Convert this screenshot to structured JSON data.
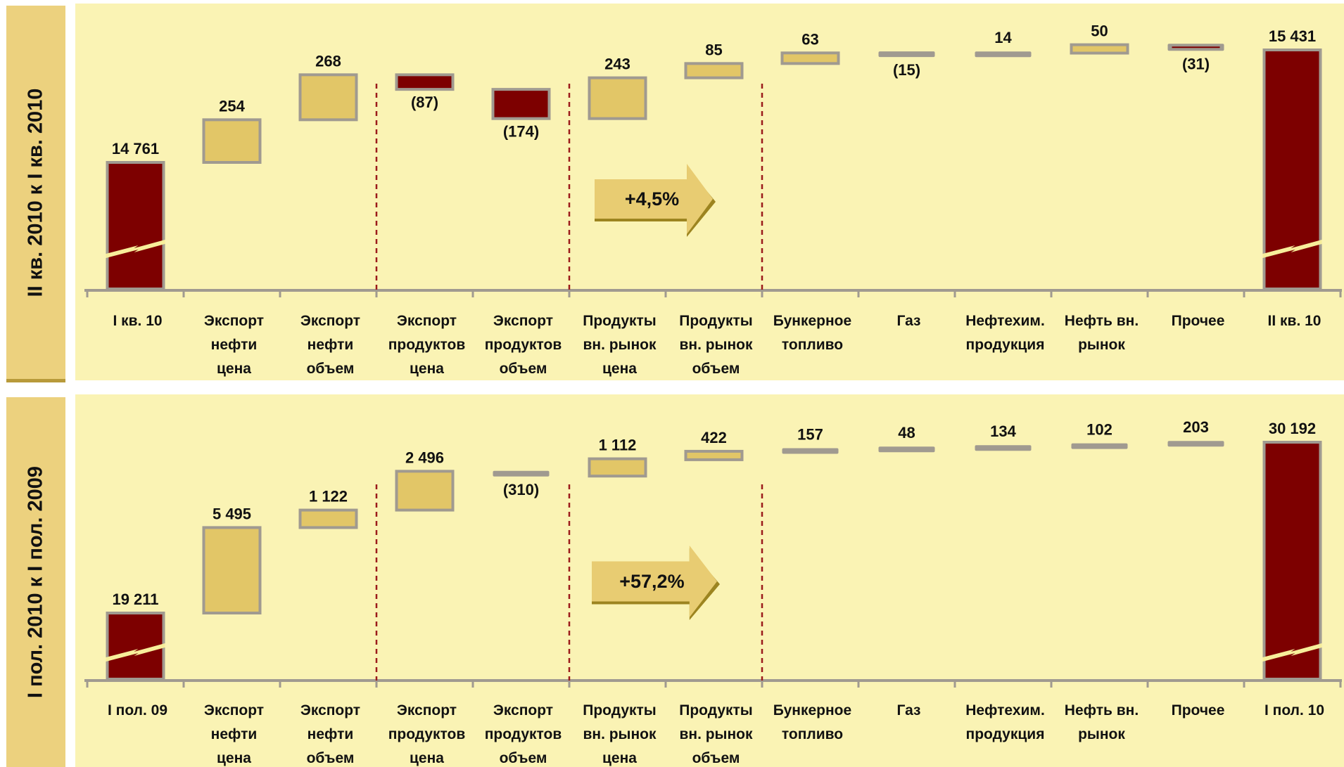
{
  "colors": {
    "up": "#e2c667",
    "down": "#7d0000",
    "total": "#7d0000",
    "border": "#a09a90",
    "neutral": "#a09a90",
    "axis": "#a09a90",
    "divider": "#9b1b1b",
    "panel_bg": "#faf3b4",
    "side_bg": "#ecd17e",
    "arrow": "#e8cc72"
  },
  "charts": [
    {
      "side_label": "II кв. 2010 к I кв. 2010",
      "arrow_label": "+4,5%"
    },
    {
      "side_label": "I пол. 2010 к I пол. 2009",
      "arrow_label": "+57,2%"
    }
  ],
  "chart_data": [
    {
      "type": "bar",
      "subtype": "waterfall",
      "categories": [
        [
          "I кв. 10"
        ],
        [
          "Экспорт",
          "нефти",
          "цена"
        ],
        [
          "Экспорт",
          "нефти",
          "объем"
        ],
        [
          "Экспорт",
          "продуктов",
          "цена"
        ],
        [
          "Экспорт",
          "продуктов",
          "объем"
        ],
        [
          "Продукты",
          "вн. рынок",
          "цена"
        ],
        [
          "Продукты",
          "вн. рынок",
          "объем"
        ],
        [
          "Бункерное",
          "топливо"
        ],
        [
          "Газ"
        ],
        [
          "Нефтехим.",
          "продукция"
        ],
        [
          "Нефть вн.",
          "рынок"
        ],
        [
          "Прочее"
        ],
        [
          "II кв. 10"
        ]
      ],
      "values": [
        14761,
        254,
        268,
        -87,
        -174,
        243,
        85,
        63,
        -15,
        14,
        50,
        -31,
        15431
      ],
      "labels": [
        "14 761",
        "254",
        "268",
        "(87)",
        "(174)",
        "243",
        "85",
        "63",
        "(15)",
        "14",
        "50",
        "(31)",
        "15 431"
      ],
      "kinds": [
        "total",
        "up",
        "up",
        "down",
        "down",
        "up",
        "up",
        "up",
        "neutral",
        "neutral",
        "up",
        "down-thin",
        "total"
      ],
      "axis_break": true,
      "dividers_after": [
        2,
        4,
        6
      ]
    },
    {
      "type": "bar",
      "subtype": "waterfall",
      "categories": [
        [
          "I пол. 09"
        ],
        [
          "Экспорт",
          "нефти",
          "цена"
        ],
        [
          "Экспорт",
          "нефти",
          "объем"
        ],
        [
          "Экспорт",
          "продуктов",
          "цена"
        ],
        [
          "Экспорт",
          "продуктов",
          "объем"
        ],
        [
          "Продукты",
          "вн. рынок",
          "цена"
        ],
        [
          "Продукты",
          "вн. рынок",
          "объем"
        ],
        [
          "Бункерное",
          "топливо"
        ],
        [
          "Газ"
        ],
        [
          "Нефтехим.",
          "продукция"
        ],
        [
          "Нефть вн.",
          "рынок"
        ],
        [
          "Прочее"
        ],
        [
          "I пол. 10"
        ]
      ],
      "values": [
        19211,
        5495,
        1122,
        2496,
        -310,
        1112,
        422,
        157,
        48,
        134,
        102,
        203,
        30192
      ],
      "labels": [
        "19 211",
        "5 495",
        "1 122",
        "2 496",
        "(310)",
        "1 112",
        "422",
        "157",
        "48",
        "134",
        "102",
        "203",
        "30 192"
      ],
      "kinds": [
        "total",
        "up",
        "up",
        "up",
        "neutral",
        "up",
        "up",
        "neutral",
        "neutral",
        "neutral",
        "neutral",
        "neutral",
        "total"
      ],
      "axis_break": true,
      "dividers_after": [
        2,
        4,
        6
      ]
    }
  ]
}
